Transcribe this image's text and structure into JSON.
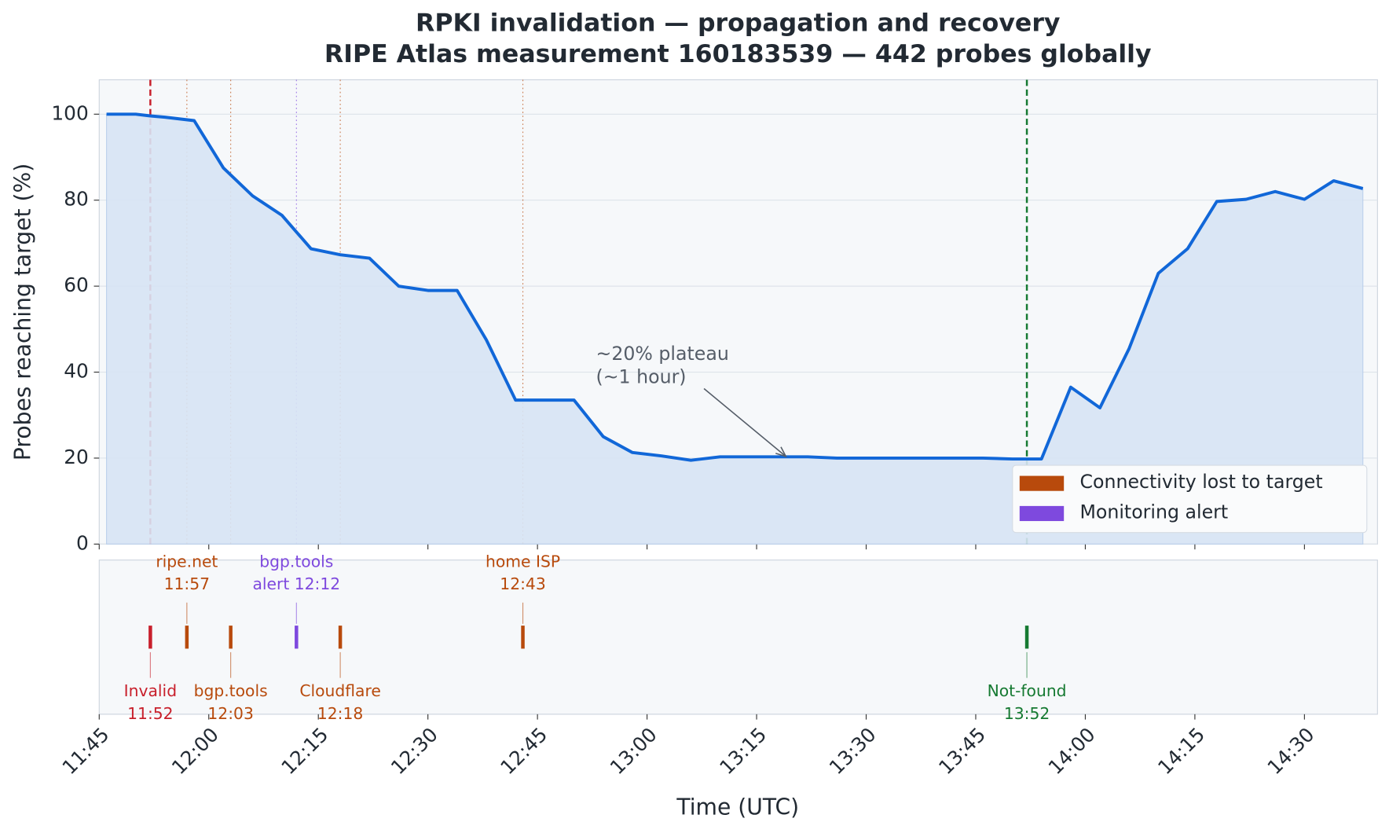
{
  "chart_data": {
    "type": "line",
    "title": "RPKI invalidation — propagation and recovery",
    "subtitle": "RIPE Atlas measurement 160183539 — 442 probes globally",
    "xlabel": "Time (UTC)",
    "ylabel": "Probes reaching target (%)",
    "x": [
      "11:46",
      "11:50",
      "11:52",
      "11:54",
      "11:58",
      "12:02",
      "12:06",
      "12:10",
      "12:14",
      "12:18",
      "12:22",
      "12:26",
      "12:30",
      "12:34",
      "12:38",
      "12:42",
      "12:46",
      "12:50",
      "12:54",
      "12:58",
      "13:02",
      "13:06",
      "13:10",
      "13:14",
      "13:18",
      "13:22",
      "13:26",
      "13:30",
      "13:34",
      "13:38",
      "13:42",
      "13:46",
      "13:50",
      "13:54",
      "13:58",
      "14:02",
      "14:06",
      "14:10",
      "14:14",
      "14:18",
      "14:22",
      "14:26",
      "14:30",
      "14:34",
      "14:38"
    ],
    "series": [
      {
        "name": "Probes reaching target",
        "color": "#1167d8",
        "fill": "#d8e5f5",
        "values": [
          100,
          100,
          99.6,
          99.3,
          98.5,
          87.5,
          81,
          76.5,
          68.7,
          67.3,
          66.5,
          60,
          59,
          59,
          47.5,
          33.5,
          33.5,
          33.5,
          25,
          21.3,
          20.5,
          19.5,
          20.3,
          20.3,
          20.3,
          20.3,
          20,
          20,
          20,
          20,
          20,
          20,
          19.8,
          19.8,
          36.5,
          31.7,
          45.5,
          63,
          68.7,
          79.7,
          80.2,
          82,
          80.2,
          84.5,
          82.7
        ]
      }
    ],
    "xlim": [
      "11:45",
      "14:40"
    ],
    "xticks": [
      "11:45",
      "12:00",
      "12:15",
      "12:30",
      "12:45",
      "13:00",
      "13:15",
      "13:30",
      "13:45",
      "14:00",
      "14:15",
      "14:30"
    ],
    "ylim": [
      0,
      108
    ],
    "yticks": [
      0,
      20,
      40,
      60,
      80,
      100
    ],
    "grid": true,
    "legend": {
      "corner": "lower right",
      "entries": [
        {
          "name": "Connectivity lost to target",
          "color": "#b84a0c"
        },
        {
          "name": "Monitoring alert",
          "color": "#7e49de"
        }
      ]
    },
    "annotation": {
      "lines": [
        "~20% plateau",
        "(~1 hour)"
      ],
      "xy": [
        "13:19",
        20.4
      ],
      "xytext": [
        "12:53",
        44
      ]
    },
    "events": [
      {
        "name": "Invalid",
        "time": "11:52",
        "color": "#c8202c",
        "side": "below",
        "line": "dashed"
      },
      {
        "name": "ripe.net",
        "time": "11:57",
        "color": "#b84a0c",
        "side": "above",
        "line": "dotted"
      },
      {
        "name": "bgp.tools",
        "time": "12:03",
        "color": "#b84a0c",
        "side": "below",
        "line": "dotted"
      },
      {
        "name": "bgp.tools",
        "prefix": "alert",
        "time": "12:12",
        "color": "#7e49de",
        "side": "above",
        "line": "dotted"
      },
      {
        "name": "Cloudflare",
        "time": "12:18",
        "color": "#b84a0c",
        "side": "below",
        "line": "dotted"
      },
      {
        "name": "home ISP",
        "time": "12:43",
        "color": "#b84a0c",
        "side": "above",
        "line": "dotted"
      },
      {
        "name": "Not-found",
        "time": "13:52",
        "color": "#167a32",
        "side": "below",
        "line": "dashed"
      }
    ]
  }
}
